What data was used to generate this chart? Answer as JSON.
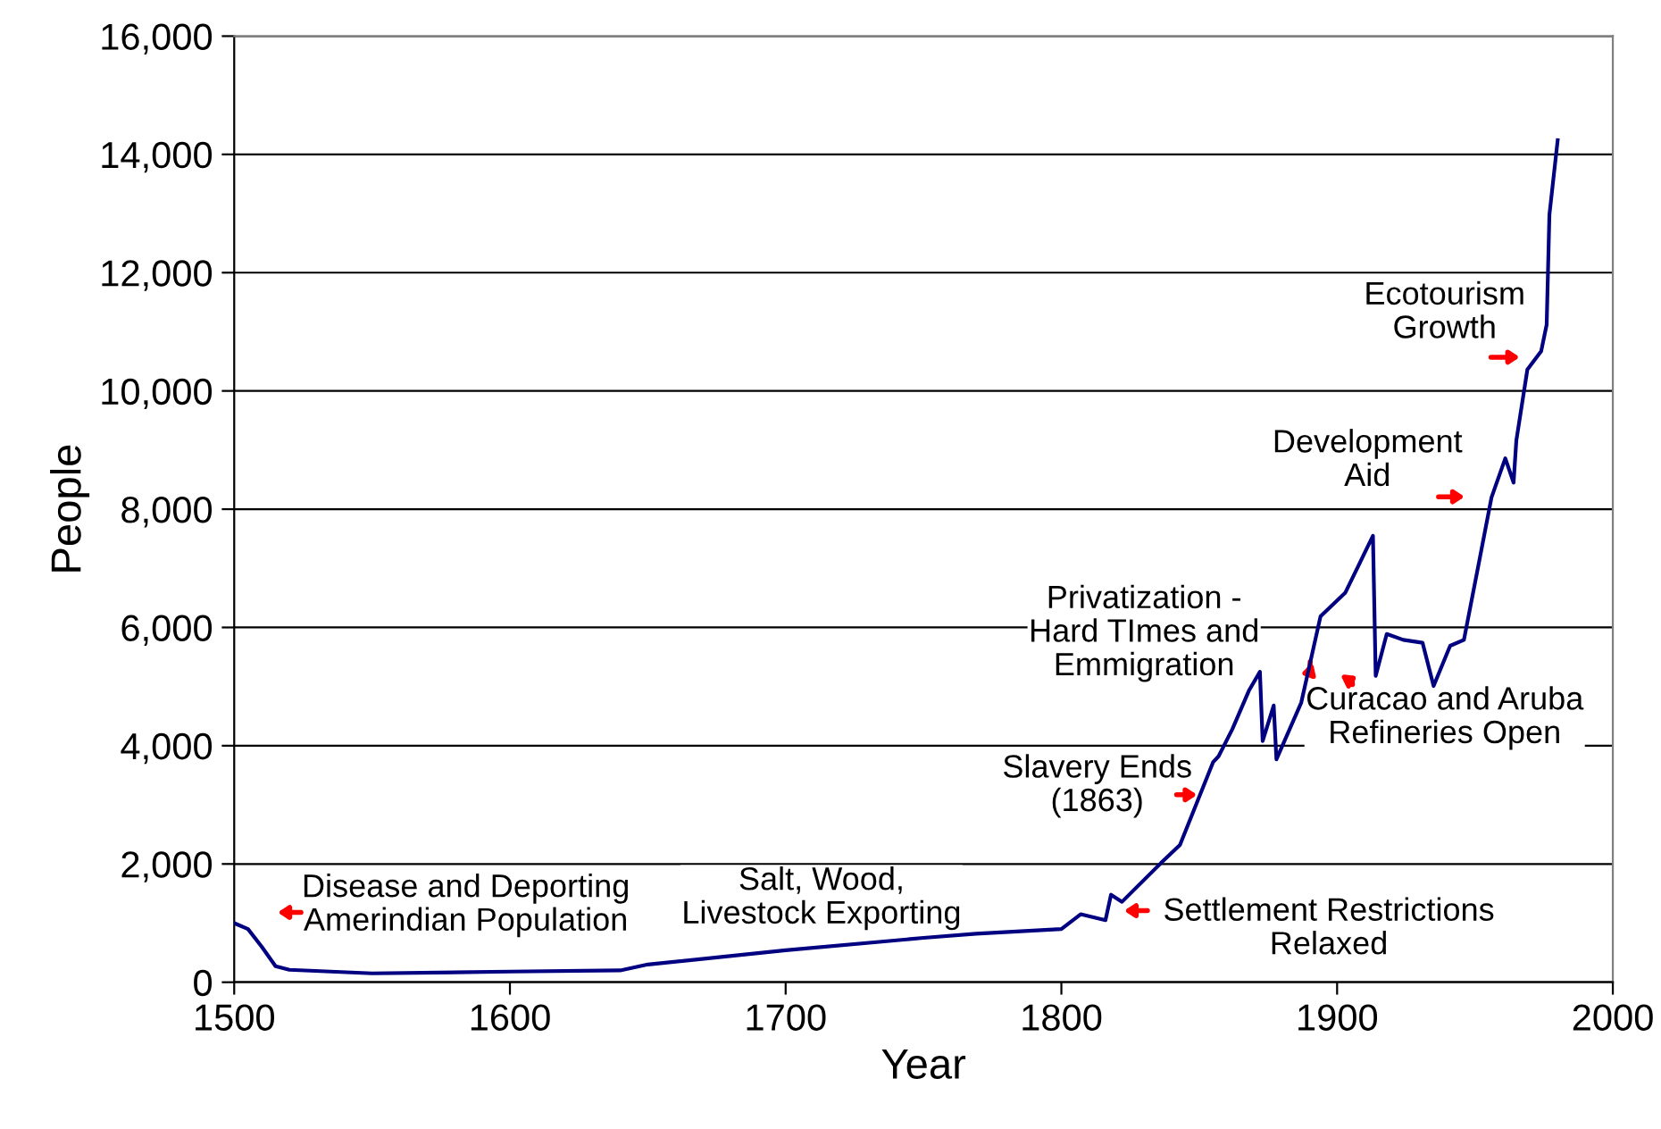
{
  "chart_data": {
    "type": "line",
    "xlabel": "Year",
    "ylabel": "People",
    "xlim": [
      1500,
      2000
    ],
    "xticks": [
      1500,
      1600,
      1700,
      1800,
      1900,
      2000
    ],
    "ylim": [
      0,
      16000
    ],
    "yticks": [
      {
        "value": 0,
        "label": "0"
      },
      {
        "value": 2000,
        "label": "2,000"
      },
      {
        "value": 4000,
        "label": "4,000"
      },
      {
        "value": 6000,
        "label": "6,000"
      },
      {
        "value": 8000,
        "label": "8,000"
      },
      {
        "value": 10000,
        "label": "10,000"
      },
      {
        "value": 12000,
        "label": "12,000"
      },
      {
        "value": 14000,
        "label": "14,000"
      },
      {
        "value": 16000,
        "label": "16,000"
      }
    ],
    "grid": "y",
    "legend": false,
    "marker": "none",
    "line_style": "solid",
    "series": [
      {
        "color": "#000080",
        "x": [
          1500,
          1505,
          1510,
          1515,
          1520,
          1550,
          1600,
          1640,
          1650,
          1700,
          1750,
          1769,
          1800,
          1807,
          1816,
          1818,
          1822,
          1836,
          1843,
          1849,
          1855,
          1857,
          1862,
          1868,
          1872,
          1873,
          1877,
          1878,
          1887,
          1894,
          1903,
          1913,
          1914,
          1918,
          1924,
          1931,
          1935,
          1941,
          1946,
          1951,
          1956,
          1961,
          1964,
          1965,
          1969,
          1974,
          1976,
          1977,
          1980
        ],
        "values": [
          1000,
          900,
          600,
          270,
          210,
          150,
          180,
          200,
          300,
          540,
          750,
          820,
          900,
          1150,
          1050,
          1480,
          1360,
          2010,
          2320,
          3020,
          3720,
          3820,
          4280,
          4930,
          5250,
          4080,
          4680,
          3770,
          4730,
          6190,
          6590,
          7550,
          5180,
          5890,
          5790,
          5740,
          5010,
          5690,
          5790,
          6990,
          8200,
          8860,
          8450,
          9160,
          10360,
          10670,
          11120,
          12980,
          14240
        ]
      }
    ],
    "annotations": [
      "Disease and Deporting\nAmerindian Population",
      "Salt, Wood,\nLivestock Exporting",
      "Settlement Restrictions\nRelaxed",
      "Slavery Ends\n(1863)",
      "Privatization -\nHard TImes and\nEmmigration",
      "Curacao and Aruba\nRefineries Open",
      "Development\nAid",
      "Ecotourism\nGrowth"
    ]
  }
}
